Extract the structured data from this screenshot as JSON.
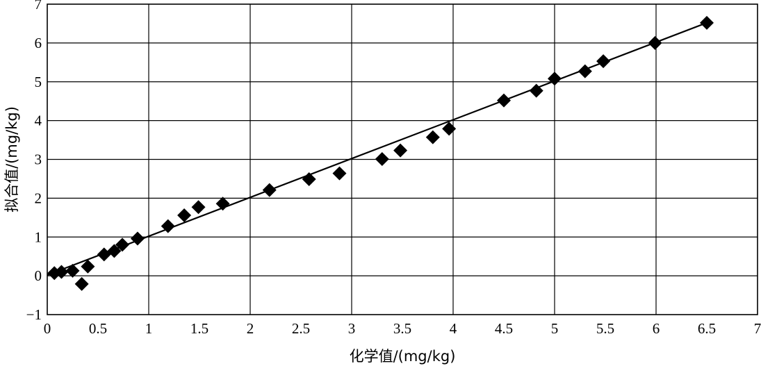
{
  "chart_data": {
    "type": "scatter",
    "title": "",
    "xlabel": "化学值/(mg/kg)",
    "ylabel": "拟合值/(mg/kg)",
    "xlim": [
      0,
      7
    ],
    "ylim": [
      -1,
      7
    ],
    "xticks": [
      0,
      0.5,
      1,
      1.5,
      2,
      2.5,
      3,
      3.5,
      4,
      4.5,
      5,
      5.5,
      6,
      6.5,
      7
    ],
    "xtick_labels": [
      "0",
      "0.5",
      "1",
      "1.5",
      "2",
      "2.5",
      "3",
      "3.5",
      "4",
      "4.5",
      "5",
      "5.5",
      "6",
      "6.5",
      "7"
    ],
    "yticks": [
      -1,
      0,
      1,
      2,
      3,
      4,
      5,
      6,
      7
    ],
    "ytick_labels": [
      "−1",
      "0",
      "1",
      "2",
      "3",
      "4",
      "5",
      "6",
      "7"
    ],
    "grid": true,
    "legend": "none",
    "marker": "diamond",
    "color": "#000000",
    "series": [
      {
        "type": "scatter",
        "points": [
          [
            0.07,
            0.07
          ],
          [
            0.14,
            0.1
          ],
          [
            0.25,
            0.13
          ],
          [
            0.34,
            -0.21
          ],
          [
            0.4,
            0.24
          ],
          [
            0.56,
            0.55
          ],
          [
            0.66,
            0.64
          ],
          [
            0.74,
            0.8
          ],
          [
            0.89,
            0.96
          ],
          [
            1.19,
            1.28
          ],
          [
            1.35,
            1.56
          ],
          [
            1.49,
            1.77
          ],
          [
            1.73,
            1.86
          ],
          [
            2.19,
            2.21
          ],
          [
            2.58,
            2.49
          ],
          [
            2.88,
            2.64
          ],
          [
            3.3,
            3.01
          ],
          [
            3.48,
            3.23
          ],
          [
            3.8,
            3.57
          ],
          [
            3.96,
            3.79
          ],
          [
            4.5,
            4.52
          ],
          [
            4.82,
            4.77
          ],
          [
            5.0,
            5.08
          ],
          [
            5.3,
            5.27
          ],
          [
            5.48,
            5.53
          ],
          [
            5.99,
            6.0
          ],
          [
            6.5,
            6.52
          ]
        ]
      },
      {
        "type": "line",
        "points": [
          [
            0,
            0.02
          ],
          [
            6.5,
            6.52
          ]
        ]
      }
    ]
  }
}
